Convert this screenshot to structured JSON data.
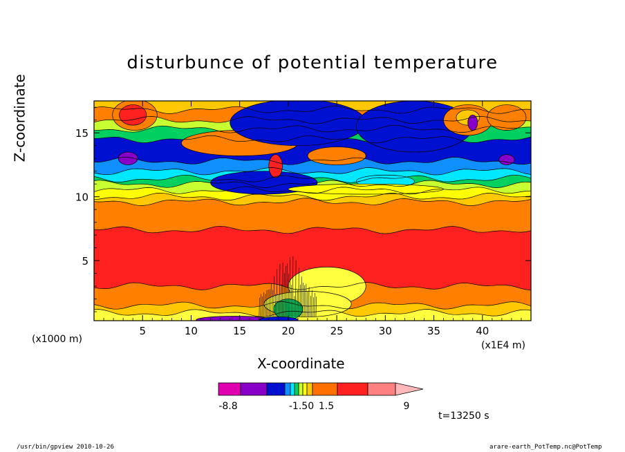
{
  "chart_data": {
    "type": "heatmap",
    "title": "disturbunce of potential temperature",
    "xlabel": "X-coordinate",
    "ylabel": "Z-coordinate",
    "x_unit_label": "(x1E4 m)",
    "y_unit_label": "(x1000 m)",
    "x_ticks": [
      5,
      10,
      15,
      20,
      25,
      30,
      35,
      40
    ],
    "y_ticks": [
      5,
      10,
      15
    ],
    "xlim": [
      0,
      45
    ],
    "ylim": [
      0.3,
      17.5
    ],
    "colorbar": {
      "labels": [
        "-8.8",
        "-1.50",
        "1.5",
        "9"
      ],
      "colors": [
        "#e000b0",
        "#8800c8",
        "#0010d0",
        "#1090ff",
        "#00e8ff",
        "#00d060",
        "#c8ff30",
        "#ffff00",
        "#ffc800",
        "#ff7000",
        "#ff2020",
        "#ff8080",
        "#ffb8b8"
      ]
    },
    "time_label": "t=13250 s",
    "bands": [
      {
        "z": 0.3,
        "color": "#ffff40"
      },
      {
        "z": 0.9,
        "color": "#ffc800"
      },
      {
        "z": 1.5,
        "color": "#ff8000"
      },
      {
        "z": 3.0,
        "color": "#ff2020"
      },
      {
        "z": 7.4,
        "color": "#ff8000"
      },
      {
        "z": 9.6,
        "color": "#ffc800"
      },
      {
        "z": 10.0,
        "color": "#ffff00"
      },
      {
        "z": 10.5,
        "color": "#c8ff30"
      },
      {
        "z": 11.0,
        "color": "#00d060"
      },
      {
        "z": 11.4,
        "color": "#00e8ff"
      },
      {
        "z": 12.0,
        "color": "#1090ff"
      },
      {
        "z": 12.8,
        "color": "#0010d0"
      },
      {
        "z": 14.5,
        "color": "#00d060"
      },
      {
        "z": 15.3,
        "color": "#c8ff30"
      },
      {
        "z": 16.0,
        "color": "#ff8000"
      },
      {
        "z": 16.8,
        "color": "#ffc800"
      }
    ],
    "blobs": [
      {
        "x": 4.2,
        "z": 16.4,
        "rx": 2.3,
        "rz": 1.2,
        "color": "#ff8000"
      },
      {
        "x": 4.0,
        "z": 16.4,
        "rx": 1.4,
        "rz": 0.8,
        "color": "#ff2020"
      },
      {
        "x": 15.0,
        "z": 14.2,
        "rx": 6.0,
        "rz": 1.0,
        "color": "#ff8000"
      },
      {
        "x": 25.0,
        "z": 13.2,
        "rx": 3.0,
        "rz": 0.7,
        "color": "#ff8000"
      },
      {
        "x": 21.0,
        "z": 15.8,
        "rx": 7.0,
        "rz": 1.8,
        "color": "#0010d0"
      },
      {
        "x": 33.0,
        "z": 15.5,
        "rx": 6.0,
        "rz": 2.0,
        "color": "#0010d0"
      },
      {
        "x": 38.5,
        "z": 16.0,
        "rx": 2.5,
        "rz": 1.2,
        "color": "#ff8000"
      },
      {
        "x": 42.5,
        "z": 16.2,
        "rx": 2.0,
        "rz": 1.0,
        "color": "#ff8000"
      },
      {
        "x": 38.5,
        "z": 16.2,
        "rx": 1.2,
        "rz": 0.6,
        "color": "#ffc800"
      },
      {
        "x": 3.5,
        "z": 13.0,
        "rx": 1.0,
        "rz": 0.5,
        "color": "#8800c8"
      },
      {
        "x": 42.5,
        "z": 12.9,
        "rx": 0.8,
        "rz": 0.4,
        "color": "#8800c8"
      },
      {
        "x": 39.0,
        "z": 15.8,
        "rx": 0.5,
        "rz": 0.6,
        "color": "#8800c8"
      },
      {
        "x": 17.5,
        "z": 11.1,
        "rx": 5.5,
        "rz": 0.9,
        "color": "#0010d0"
      },
      {
        "x": 30.0,
        "z": 11.2,
        "rx": 3.0,
        "rz": 0.5,
        "color": "#00e8ff"
      },
      {
        "x": 28.0,
        "z": 10.6,
        "rx": 8.0,
        "rz": 0.4,
        "color": "#ffff00"
      },
      {
        "x": 18.7,
        "z": 12.4,
        "rx": 0.7,
        "rz": 0.9,
        "color": "#ff2020"
      },
      {
        "x": 24.0,
        "z": 3.0,
        "rx": 4.0,
        "rz": 1.5,
        "color": "#ffff40"
      },
      {
        "x": 22.0,
        "z": 1.6,
        "rx": 4.5,
        "rz": 1.0,
        "color": "#ffff40"
      },
      {
        "x": 20.0,
        "z": 1.2,
        "rx": 1.5,
        "rz": 0.8,
        "color": "#00d060"
      },
      {
        "x": 14.5,
        "z": 0.35,
        "rx": 4.0,
        "rz": 0.3,
        "color": "#8800c8"
      },
      {
        "x": 19.0,
        "z": 0.35,
        "rx": 2.0,
        "rz": 0.25,
        "color": "#0010d0"
      }
    ]
  },
  "footer": {
    "left": "/usr/bin/gpview   2010-10-26",
    "right": "arare-earth_PotTemp.nc@PotTemp"
  }
}
